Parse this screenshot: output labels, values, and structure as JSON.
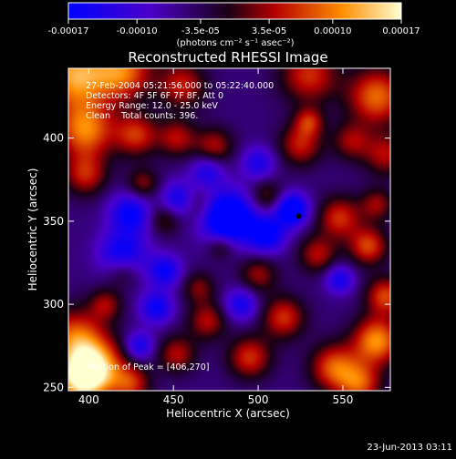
{
  "chart_data": {
    "type": "heatmap",
    "title": "Reconstructed RHESSI Image",
    "xlabel": "Heliocentric X (arcsec)",
    "ylabel": "Heliocentric Y (arcsec)",
    "xlim": [
      388,
      578
    ],
    "ylim": [
      248,
      442
    ],
    "x_ticks": [
      400,
      450,
      500,
      550
    ],
    "y_ticks": [
      250,
      300,
      350,
      400
    ],
    "colorbar": {
      "ticks": [
        "-0.00017",
        "-0.00010",
        "-3.5e-05",
        "3.5e-05",
        "0.00010",
        "0.00017"
      ],
      "tick_values": [
        -0.00017,
        -0.0001,
        -3.5e-05,
        3.5e-05,
        0.0001,
        0.00017
      ],
      "range": [
        -0.00017,
        0.00017
      ],
      "unit": "(photons cm⁻² s⁻¹ asec⁻²)"
    },
    "annotations": [
      "27-Feb-2004 05:21:56.000 to 05:22:40.000",
      "Detectors: 4F 5F 6F 7F 8F, Att 0",
      "Energy Range: 12.0 - 25.0 keV",
      "Clean    Total counts: 396."
    ],
    "peak_label": "Position of Peak = [406,270]",
    "peak": [
      406,
      270
    ],
    "marker": [
      524,
      353
    ],
    "field": {
      "background": -5e-05,
      "blobs": [
        [
          392,
          438,
          14,
          0.00017
        ],
        [
          420,
          440,
          12,
          0.00014
        ],
        [
          455,
          432,
          10,
          0.0001
        ],
        [
          530,
          438,
          12,
          0.00011
        ],
        [
          570,
          425,
          12,
          0.00014
        ],
        [
          398,
          405,
          12,
          0.00015
        ],
        [
          428,
          402,
          9,
          0.00011
        ],
        [
          452,
          400,
          8,
          9e-05
        ],
        [
          474,
          395,
          8,
          9e-05
        ],
        [
          525,
          396,
          9,
          0.0001
        ],
        [
          555,
          398,
          8,
          8e-05
        ],
        [
          575,
          390,
          9,
          9e-05
        ],
        [
          398,
          378,
          9,
          0.0001
        ],
        [
          432,
          372,
          7,
          8e-05
        ],
        [
          462,
          360,
          8,
          9e-05
        ],
        [
          505,
          365,
          7,
          7e-05
        ],
        [
          548,
          352,
          9,
          0.00011
        ],
        [
          570,
          360,
          7,
          8e-05
        ],
        [
          445,
          352,
          7,
          8e-05
        ],
        [
          535,
          330,
          8,
          9e-05
        ],
        [
          565,
          335,
          8,
          0.00012
        ],
        [
          500,
          318,
          8,
          8e-05
        ],
        [
          465,
          310,
          7,
          7e-05
        ],
        [
          420,
          320,
          7,
          7e-05
        ],
        [
          392,
          280,
          12,
          0.00013
        ],
        [
          404,
          262,
          12,
          0.00017
        ],
        [
          395,
          255,
          10,
          0.00016
        ],
        [
          425,
          252,
          8,
          0.0001
        ],
        [
          470,
          290,
          8,
          9e-05
        ],
        [
          495,
          268,
          9,
          0.00011
        ],
        [
          515,
          292,
          9,
          0.00011
        ],
        [
          545,
          262,
          10,
          0.00013
        ],
        [
          570,
          278,
          10,
          0.00016
        ],
        [
          575,
          305,
          8,
          0.00012
        ],
        [
          560,
          252,
          9,
          0.00012
        ],
        [
          452,
          270,
          8,
          9e-05
        ],
        [
          478,
          335,
          6,
          7e-05
        ],
        [
          410,
          300,
          7,
          8e-05
        ],
        [
          530,
          410,
          6,
          9e-05
        ],
        [
          482,
          352,
          11,
          -0.0002
        ],
        [
          454,
          362,
          8,
          -0.00014
        ],
        [
          425,
          355,
          9,
          -0.00012
        ],
        [
          420,
          330,
          10,
          -0.00012
        ],
        [
          505,
          342,
          8,
          -0.00013
        ],
        [
          520,
          357,
          7,
          -0.00016
        ],
        [
          445,
          320,
          7,
          -0.00011
        ],
        [
          440,
          298,
          7,
          -0.00011
        ],
        [
          430,
          275,
          6,
          -0.0001
        ],
        [
          490,
          300,
          7,
          -0.0001
        ],
        [
          470,
          380,
          7,
          -9e-05
        ],
        [
          548,
          315,
          6,
          -0.0001
        ],
        [
          500,
          385,
          7,
          -9e-05
        ]
      ]
    }
  },
  "footer": {
    "date": "23-Jun-2013 03:11"
  }
}
